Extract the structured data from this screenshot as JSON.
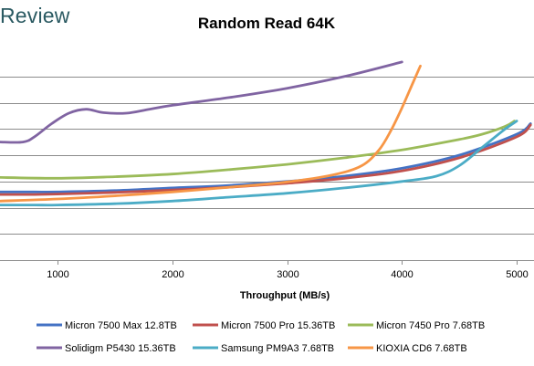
{
  "brand": {
    "logo_text": "Review"
  },
  "chart_data": {
    "type": "line",
    "title": "Random Read 64K",
    "xlabel": "Throughput (MB/s)",
    "ylabel": "",
    "xlim": [
      500,
      5150
    ],
    "ylim": [
      0,
      8
    ],
    "xticks": [
      1000,
      2000,
      3000,
      4000,
      5000
    ],
    "grid": "horizontal",
    "legend_position": "bottom",
    "series": [
      {
        "name": "Micron 7500 Max 12.8TB",
        "color": "#4472c4",
        "x": [
          500,
          800,
          1000,
          1500,
          2000,
          2500,
          3000,
          3500,
          4000,
          4500,
          5000,
          5120
        ],
        "y": [
          2.6,
          2.6,
          2.6,
          2.65,
          2.75,
          2.85,
          3.0,
          3.2,
          3.5,
          4.0,
          4.8,
          5.2
        ]
      },
      {
        "name": "Micron 7500 Pro 15.36TB",
        "color": "#c0504d",
        "x": [
          500,
          800,
          1000,
          1500,
          2000,
          2500,
          3000,
          3500,
          4000,
          4500,
          5000,
          5120
        ],
        "y": [
          2.5,
          2.5,
          2.52,
          2.58,
          2.67,
          2.78,
          2.93,
          3.12,
          3.4,
          3.9,
          4.7,
          5.15
        ]
      },
      {
        "name": "Micron 7450 Pro 7.68TB",
        "color": "#9bbb59",
        "x": [
          500,
          1000,
          1500,
          2000,
          2500,
          3000,
          3500,
          4000,
          4500,
          4700,
          4900,
          4980
        ],
        "y": [
          3.15,
          3.12,
          3.18,
          3.28,
          3.45,
          3.65,
          3.9,
          4.2,
          4.6,
          4.8,
          5.1,
          5.3
        ]
      },
      {
        "name": "Solidigm P5430 15.36TB",
        "color": "#8064a2",
        "x": [
          500,
          700,
          800,
          950,
          1100,
          1250,
          1400,
          1600,
          1800,
          2000,
          2500,
          3000,
          3500,
          4000
        ],
        "y": [
          4.5,
          4.5,
          4.7,
          5.2,
          5.6,
          5.75,
          5.62,
          5.6,
          5.75,
          5.9,
          6.2,
          6.55,
          7.0,
          7.55
        ]
      },
      {
        "name": "Samsung PM9A3 7.68TB",
        "color": "#4bacc6",
        "x": [
          500,
          800,
          1000,
          1500,
          2000,
          2500,
          3000,
          3500,
          4000,
          4300,
          4500,
          4700,
          4900,
          5000
        ],
        "y": [
          2.1,
          2.1,
          2.1,
          2.15,
          2.25,
          2.4,
          2.55,
          2.75,
          3.0,
          3.2,
          3.6,
          4.3,
          5.0,
          5.3
        ]
      },
      {
        "name": "KIOXIA CD6 7.68TB",
        "color": "#f79646",
        "x": [
          500,
          1000,
          1500,
          2000,
          2500,
          3000,
          3400,
          3650,
          3800,
          3900,
          4000,
          4100,
          4160
        ],
        "y": [
          2.25,
          2.33,
          2.45,
          2.6,
          2.78,
          2.98,
          3.25,
          3.6,
          4.2,
          4.9,
          5.8,
          6.8,
          7.4
        ]
      }
    ]
  }
}
